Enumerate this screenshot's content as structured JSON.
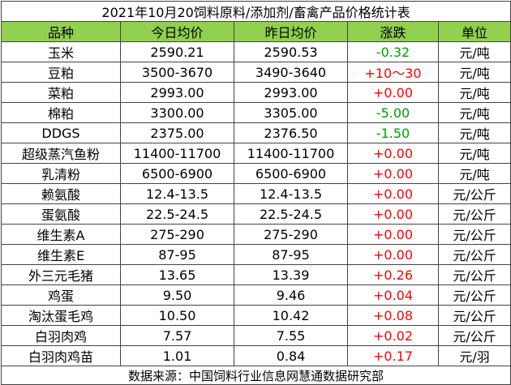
{
  "title": "2021年10月20饲料原料/添加剂/畜禽产品价格统计表",
  "table": {
    "header": [
      "品种",
      "今日均价",
      "昨日均价",
      "涨跌",
      "单位"
    ],
    "rows": [
      [
        "玉米",
        "2590.21",
        "2590.53",
        "-0.32",
        "元/吨"
      ],
      [
        "豆粕",
        "3500-3670",
        "3490-3640",
        "+10～30",
        "元/吨"
      ],
      [
        "菜粕",
        "2993.00",
        "2993.00",
        "+0.00",
        "元/吨"
      ],
      [
        "棉粕",
        "3300.00",
        "3305.00",
        "-5.00",
        "元/吨"
      ],
      [
        "DDGS",
        "2375.00",
        "2376.50",
        "-1.50",
        "元/吨"
      ],
      [
        "超级蒸汽鱼粉",
        "11400-11700",
        "11400-11700",
        "+0.00",
        "元/吨"
      ],
      [
        "乳清粉",
        "6500-6900",
        "6500-6900",
        "+0.00",
        "元/吨"
      ],
      [
        "赖氨酸",
        "12.4-13.5",
        "12.4-13.5",
        "+0.00",
        "元/公斤"
      ],
      [
        "蛋氨酸",
        "22.5-24.5",
        "22.5-24.5",
        "+0.00",
        "元/公斤"
      ],
      [
        "维生素A",
        "275-290",
        "275-290",
        "+0.00",
        "元/公斤"
      ],
      [
        "维生素E",
        "87-95",
        "87-95",
        "+0.00",
        "元/公斤"
      ],
      [
        "外三元毛猪",
        "13.65",
        "13.39",
        "+0.26",
        "元/公斤"
      ],
      [
        "鸡蛋",
        "9.50",
        "9.46",
        "+0.04",
        "元/公斤"
      ],
      [
        "淘汰蛋毛鸡",
        "10.50",
        "10.42",
        "+0.08",
        "元/公斤"
      ],
      [
        "白羽肉鸡",
        "7.57",
        "7.55",
        "+0.02",
        "元/公斤"
      ],
      [
        "白羽肉鸡苗",
        "1.01",
        "0.84",
        "+0.17",
        "元/羽"
      ]
    ]
  },
  "source": "数据来源：中国饲料行业信息网慧通数据研究部"
}
